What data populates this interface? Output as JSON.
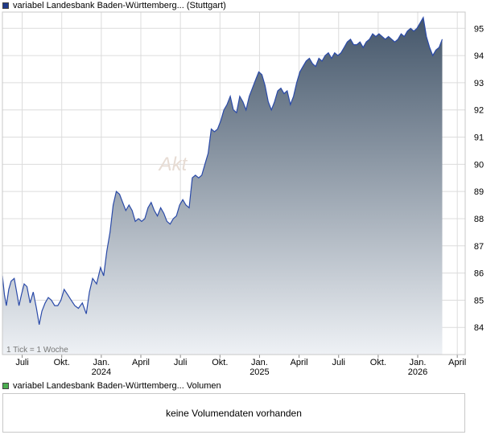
{
  "legend": {
    "price_label": "variabel Landesbank Baden-Württemberg... (Stuttgart)",
    "price_color": "#1f3a8a",
    "volume_label": "variabel Landesbank Baden-Württemberg... Volumen",
    "volume_color": "#4caf50"
  },
  "watermark": "Akt",
  "tick_note": "1 Tick = 1 Woche",
  "volume_panel": {
    "message": "keine Volumendaten vorhanden"
  },
  "chart_data": {
    "type": "area",
    "ylim": [
      83,
      95.6
    ],
    "y_ticks": [
      84,
      85,
      86,
      87,
      88,
      89,
      90,
      91,
      92,
      93,
      94,
      95
    ],
    "x_labels": [
      {
        "t": 0.5,
        "label": "Juli",
        "year": ""
      },
      {
        "t": 1.5,
        "label": "Okt.",
        "year": ""
      },
      {
        "t": 2.5,
        "label": "Jan.",
        "year": "2024"
      },
      {
        "t": 3.5,
        "label": "April",
        "year": ""
      },
      {
        "t": 4.5,
        "label": "Juli",
        "year": ""
      },
      {
        "t": 5.5,
        "label": "Okt.",
        "year": ""
      },
      {
        "t": 6.5,
        "label": "Jan.",
        "year": "2025"
      },
      {
        "t": 7.5,
        "label": "April",
        "year": ""
      },
      {
        "t": 8.5,
        "label": "Juli",
        "year": ""
      },
      {
        "t": 9.5,
        "label": "Okt.",
        "year": ""
      },
      {
        "t": 10.5,
        "label": "Jan.",
        "year": "2026"
      },
      {
        "t": 11.5,
        "label": "April",
        "year": ""
      }
    ],
    "x_range": [
      0,
      11.7
    ],
    "series": [
      {
        "line_color": "#2a4aa8",
        "fill_top": "#44566a",
        "fill_bottom": "#eef1f5",
        "points": [
          [
            0.0,
            85.9
          ],
          [
            0.05,
            85.2
          ],
          [
            0.1,
            84.8
          ],
          [
            0.16,
            85.4
          ],
          [
            0.22,
            85.7
          ],
          [
            0.3,
            85.8
          ],
          [
            0.36,
            85.3
          ],
          [
            0.42,
            84.8
          ],
          [
            0.48,
            85.2
          ],
          [
            0.55,
            85.6
          ],
          [
            0.62,
            85.5
          ],
          [
            0.7,
            84.9
          ],
          [
            0.78,
            85.3
          ],
          [
            0.86,
            84.7
          ],
          [
            0.93,
            84.1
          ],
          [
            1.0,
            84.6
          ],
          [
            1.08,
            84.9
          ],
          [
            1.16,
            85.1
          ],
          [
            1.24,
            85.0
          ],
          [
            1.32,
            84.8
          ],
          [
            1.4,
            84.8
          ],
          [
            1.48,
            85.0
          ],
          [
            1.56,
            85.4
          ],
          [
            1.65,
            85.2
          ],
          [
            1.74,
            85.0
          ],
          [
            1.83,
            84.8
          ],
          [
            1.92,
            84.7
          ],
          [
            2.02,
            84.9
          ],
          [
            2.12,
            84.5
          ],
          [
            2.2,
            85.3
          ],
          [
            2.28,
            85.8
          ],
          [
            2.38,
            85.6
          ],
          [
            2.48,
            86.2
          ],
          [
            2.56,
            85.9
          ],
          [
            2.64,
            86.8
          ],
          [
            2.72,
            87.5
          ],
          [
            2.8,
            88.5
          ],
          [
            2.88,
            89.0
          ],
          [
            2.96,
            88.9
          ],
          [
            3.04,
            88.6
          ],
          [
            3.12,
            88.3
          ],
          [
            3.2,
            88.5
          ],
          [
            3.28,
            88.3
          ],
          [
            3.36,
            87.9
          ],
          [
            3.44,
            88.0
          ],
          [
            3.52,
            87.9
          ],
          [
            3.6,
            88.0
          ],
          [
            3.68,
            88.4
          ],
          [
            3.76,
            88.6
          ],
          [
            3.84,
            88.3
          ],
          [
            3.92,
            88.1
          ],
          [
            4.0,
            88.4
          ],
          [
            4.08,
            88.2
          ],
          [
            4.16,
            87.9
          ],
          [
            4.24,
            87.8
          ],
          [
            4.32,
            88.0
          ],
          [
            4.4,
            88.1
          ],
          [
            4.48,
            88.5
          ],
          [
            4.56,
            88.7
          ],
          [
            4.64,
            88.5
          ],
          [
            4.72,
            88.4
          ],
          [
            4.8,
            89.5
          ],
          [
            4.88,
            89.6
          ],
          [
            4.96,
            89.5
          ],
          [
            5.04,
            89.6
          ],
          [
            5.12,
            90.0
          ],
          [
            5.2,
            90.4
          ],
          [
            5.28,
            91.3
          ],
          [
            5.36,
            91.2
          ],
          [
            5.44,
            91.3
          ],
          [
            5.52,
            91.6
          ],
          [
            5.6,
            92.0
          ],
          [
            5.68,
            92.2
          ],
          [
            5.76,
            92.5
          ],
          [
            5.84,
            92.0
          ],
          [
            5.92,
            91.9
          ],
          [
            6.0,
            92.5
          ],
          [
            6.08,
            92.3
          ],
          [
            6.16,
            92.0
          ],
          [
            6.24,
            92.5
          ],
          [
            6.32,
            92.8
          ],
          [
            6.4,
            93.1
          ],
          [
            6.48,
            93.4
          ],
          [
            6.56,
            93.3
          ],
          [
            6.64,
            92.9
          ],
          [
            6.72,
            92.3
          ],
          [
            6.8,
            92.0
          ],
          [
            6.88,
            92.3
          ],
          [
            6.96,
            92.7
          ],
          [
            7.04,
            92.8
          ],
          [
            7.12,
            92.6
          ],
          [
            7.2,
            92.7
          ],
          [
            7.28,
            92.2
          ],
          [
            7.36,
            92.5
          ],
          [
            7.44,
            93.0
          ],
          [
            7.52,
            93.4
          ],
          [
            7.6,
            93.6
          ],
          [
            7.68,
            93.8
          ],
          [
            7.76,
            93.9
          ],
          [
            7.84,
            93.7
          ],
          [
            7.92,
            93.6
          ],
          [
            8.0,
            93.9
          ],
          [
            8.08,
            93.8
          ],
          [
            8.16,
            94.0
          ],
          [
            8.24,
            94.1
          ],
          [
            8.32,
            93.9
          ],
          [
            8.4,
            94.1
          ],
          [
            8.48,
            94.0
          ],
          [
            8.56,
            94.1
          ],
          [
            8.64,
            94.3
          ],
          [
            8.72,
            94.5
          ],
          [
            8.8,
            94.6
          ],
          [
            8.88,
            94.4
          ],
          [
            8.96,
            94.4
          ],
          [
            9.04,
            94.5
          ],
          [
            9.12,
            94.3
          ],
          [
            9.2,
            94.5
          ],
          [
            9.28,
            94.6
          ],
          [
            9.36,
            94.8
          ],
          [
            9.44,
            94.7
          ],
          [
            9.52,
            94.8
          ],
          [
            9.6,
            94.7
          ],
          [
            9.68,
            94.6
          ],
          [
            9.76,
            94.7
          ],
          [
            9.84,
            94.6
          ],
          [
            9.92,
            94.5
          ],
          [
            10.0,
            94.6
          ],
          [
            10.08,
            94.8
          ],
          [
            10.16,
            94.7
          ],
          [
            10.24,
            94.9
          ],
          [
            10.32,
            95.0
          ],
          [
            10.4,
            94.9
          ],
          [
            10.48,
            95.0
          ],
          [
            10.56,
            95.2
          ],
          [
            10.64,
            95.4
          ],
          [
            10.72,
            94.7
          ],
          [
            10.8,
            94.3
          ],
          [
            10.88,
            94.0
          ],
          [
            10.96,
            94.2
          ],
          [
            11.04,
            94.3
          ],
          [
            11.12,
            94.6
          ]
        ]
      }
    ]
  }
}
